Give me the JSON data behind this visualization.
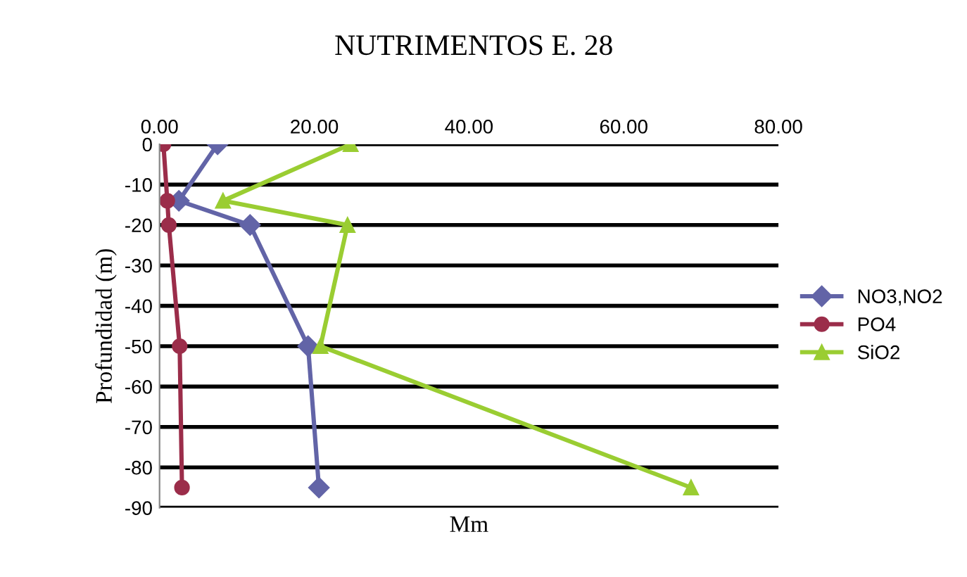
{
  "chart_data": {
    "type": "line",
    "title": "NUTRIMENTOS E. 28",
    "xlabel": "Mm",
    "ylabel": "Profundidad (m)",
    "orientation": "horizontal",
    "series": [
      {
        "name": "NO3,NO2",
        "color": "#6264a7",
        "marker": "diamond",
        "values": [
          7.5,
          2.5,
          11.7,
          19.2,
          20.6
        ],
        "x": [
          0,
          -14,
          -20,
          -50,
          -85
        ]
      },
      {
        "name": "PO4",
        "color": "#9b2d4a",
        "marker": "circle",
        "values": [
          0.5,
          1.0,
          1.2,
          2.6,
          2.9
        ],
        "x": [
          0,
          -14,
          -20,
          -50,
          -85
        ]
      },
      {
        "name": "SiO2",
        "color": "#9acd32",
        "marker": "triangle",
        "values": [
          24.7,
          8.2,
          24.3,
          20.8,
          68.7
        ],
        "x": [
          0,
          -14,
          -20,
          -50,
          -85
        ]
      }
    ],
    "xlim": [
      0,
      80
    ],
    "xticks": [
      {
        "value": 0,
        "label": "0.00"
      },
      {
        "value": 20,
        "label": "20.00"
      },
      {
        "value": 40,
        "label": "40.00"
      },
      {
        "value": 60,
        "label": "60.00"
      },
      {
        "value": 80,
        "label": "80.00"
      }
    ],
    "ylim": [
      -90,
      0
    ],
    "yticks": [
      0,
      -10,
      -20,
      -30,
      -40,
      -50,
      -60,
      -70,
      -80,
      -90
    ],
    "grid": "y",
    "legend": "right"
  }
}
